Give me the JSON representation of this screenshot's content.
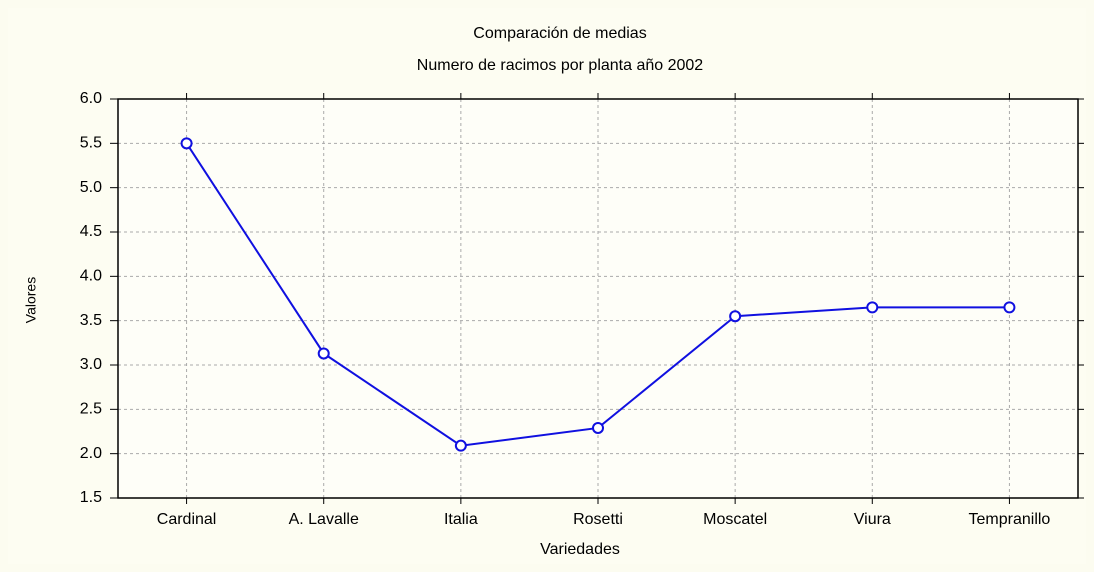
{
  "chart_data": {
    "type": "line",
    "title": "Comparación de medias",
    "subtitle": "Numero de racimos por planta año 2002",
    "x_label": "Variedades",
    "y_label": "Valores",
    "categories": [
      "Cardinal",
      "A. Lavalle",
      "Italia",
      "Rosetti",
      "Moscatel",
      "Viura",
      "Tempranillo"
    ],
    "values": [
      5.5,
      3.13,
      2.09,
      2.29,
      3.55,
      3.65,
      3.65
    ],
    "color": "#1010e0",
    "ylim": [
      1.5,
      6.0
    ],
    "yticks": [
      1.5,
      {
        "value": 2,
        "label": "2.0"
      },
      2.5,
      {
        "value": 3,
        "label": "3.0"
      },
      3.5,
      {
        "value": 4,
        "label": "4.0"
      },
      4.5,
      {
        "value": 5,
        "label": "5.0"
      },
      5.5,
      {
        "value": 6,
        "label": "6.0"
      }
    ],
    "grid": true
  }
}
